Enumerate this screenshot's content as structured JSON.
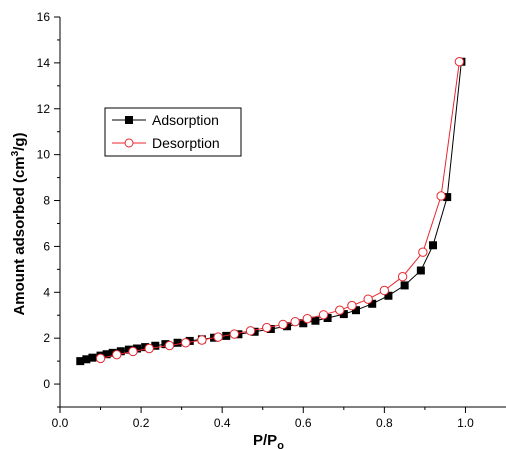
{
  "chart_data": {
    "type": "line",
    "title": "",
    "xlabel": "P/P",
    "xlabel_sub": "o",
    "ylabel": "Amount adsorbed (cm",
    "ylabel_sup": "3",
    "ylabel_tail": "/g)",
    "xlim": [
      0.0,
      1.1
    ],
    "ylim": [
      -1,
      16
    ],
    "x_ticks": [
      0.0,
      0.2,
      0.4,
      0.6,
      0.8,
      1.0
    ],
    "x_tick_labels": [
      "0.0",
      "0.2",
      "0.4",
      "0.6",
      "0.8",
      "1.0"
    ],
    "y_ticks": [
      0,
      2,
      4,
      6,
      8,
      10,
      12,
      14,
      16
    ],
    "y_tick_labels": [
      "0",
      "2",
      "4",
      "6",
      "8",
      "10",
      "12",
      "14",
      "16"
    ],
    "grid": false,
    "legend_position": "upper-left",
    "series": [
      {
        "name": "Adsorption",
        "color": "#000000",
        "marker": "filled-square",
        "x": [
          0.05,
          0.065,
          0.08,
          0.1,
          0.115,
          0.13,
          0.15,
          0.17,
          0.19,
          0.21,
          0.235,
          0.26,
          0.29,
          0.32,
          0.35,
          0.38,
          0.41,
          0.44,
          0.48,
          0.52,
          0.56,
          0.6,
          0.63,
          0.66,
          0.7,
          0.73,
          0.77,
          0.81,
          0.85,
          0.89,
          0.92,
          0.955,
          0.99
        ],
        "y": [
          1.0,
          1.08,
          1.15,
          1.24,
          1.3,
          1.36,
          1.43,
          1.5,
          1.55,
          1.61,
          1.67,
          1.74,
          1.8,
          1.88,
          1.95,
          2.02,
          2.1,
          2.17,
          2.28,
          2.4,
          2.52,
          2.65,
          2.76,
          2.88,
          3.05,
          3.22,
          3.5,
          3.85,
          4.3,
          4.95,
          6.05,
          8.15,
          14.05
        ]
      },
      {
        "name": "Desorption",
        "color": "#e8272f",
        "marker": "open-circle",
        "x": [
          0.1,
          0.14,
          0.18,
          0.22,
          0.27,
          0.31,
          0.35,
          0.39,
          0.43,
          0.47,
          0.51,
          0.55,
          0.58,
          0.61,
          0.65,
          0.69,
          0.72,
          0.76,
          0.8,
          0.845,
          0.895,
          0.94,
          0.985
        ],
        "y": [
          1.12,
          1.28,
          1.42,
          1.55,
          1.68,
          1.8,
          1.92,
          2.05,
          2.18,
          2.32,
          2.46,
          2.6,
          2.72,
          2.85,
          3.02,
          3.22,
          3.42,
          3.7,
          4.08,
          4.68,
          5.75,
          8.2,
          14.05
        ]
      }
    ]
  }
}
